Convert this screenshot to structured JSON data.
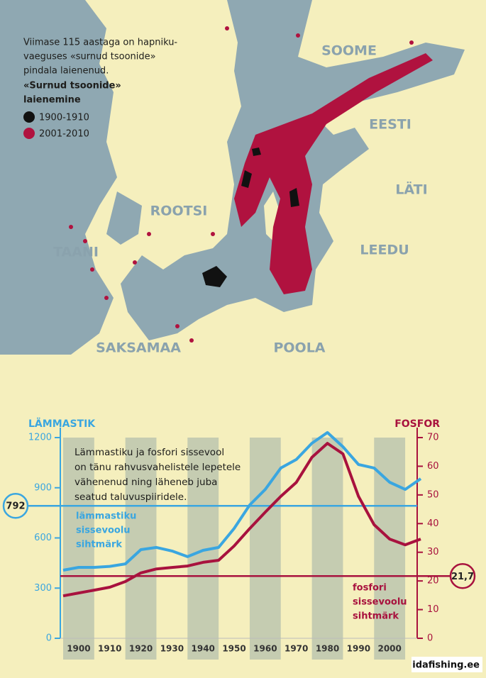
{
  "map": {
    "intro": [
      "Viimase 115 aastaga on hapniku-",
      "vaeguses «surnud tsoonide»",
      "pindala laienenud."
    ],
    "legend_title": [
      "«Surnud tsoonide»",
      "laienemine"
    ],
    "legend": [
      {
        "label": "1900-1910",
        "color": "#111111"
      },
      {
        "label": "2001-2010",
        "color": "#b0123f"
      }
    ],
    "countries": [
      "SOOME",
      "EESTI",
      "LÄTI",
      "LEEDU",
      "ROOTSI",
      "TAANI",
      "SAKSAMAA",
      "POOLA"
    ]
  },
  "chart_data": {
    "type": "line",
    "annotation": [
      "Lämmastiku ja fosfori sissevool",
      "on tänu rahvusvahelistele lepetele",
      "vähenenud ning läheneb juba",
      "seatud taluvuspiiridele."
    ],
    "x": [
      1895,
      1900,
      1905,
      1910,
      1915,
      1920,
      1925,
      1930,
      1935,
      1940,
      1945,
      1950,
      1955,
      1960,
      1965,
      1970,
      1975,
      1980,
      1985,
      1990,
      1995,
      2000,
      2005,
      2010
    ],
    "xlim": [
      1895,
      2010
    ],
    "xticks": [
      1900,
      1910,
      1920,
      1930,
      1940,
      1950,
      1960,
      1970,
      1980,
      1990,
      2000
    ],
    "ylim": [
      0,
      1260
    ],
    "yticks": [
      0,
      300,
      600,
      900,
      1200
    ],
    "y2lim": [
      0,
      73.5
    ],
    "y2ticks": [
      0,
      10,
      20,
      30,
      40,
      50,
      60,
      70
    ],
    "series": [
      {
        "name": "LÄMMASTIK",
        "color": "#3aa6e0",
        "axis": "y",
        "values": [
          407,
          424,
          424,
          430,
          445,
          530,
          543,
          522,
          488,
          526,
          543,
          657,
          797,
          890,
          1018,
          1069,
          1166,
          1230,
          1145,
          1039,
          1018,
          933,
          890,
          954
        ]
      },
      {
        "name": "FOSFOR",
        "color": "#a8123e",
        "axis": "y2",
        "values": [
          14.8,
          15.8,
          16.8,
          17.8,
          19.8,
          22.8,
          24.2,
          24.7,
          25.2,
          26.5,
          27.2,
          32.2,
          38.3,
          44.0,
          49.5,
          54.4,
          63.1,
          68.0,
          64.3,
          49.5,
          39.6,
          34.6,
          32.6,
          34.6
        ]
      }
    ],
    "targets": [
      {
        "value": 792,
        "axis": "y",
        "color": "#3aa6e0",
        "text": [
          "lämmastiku",
          "sissevoolu",
          "sihtmärk"
        ]
      },
      {
        "value": 21.7,
        "label": "21,7",
        "axis": "y2",
        "color": "#a8123e",
        "text": [
          "fosfori",
          "sissevoolu",
          "sihtmärk"
        ]
      }
    ],
    "source": "idafishing.ee"
  }
}
